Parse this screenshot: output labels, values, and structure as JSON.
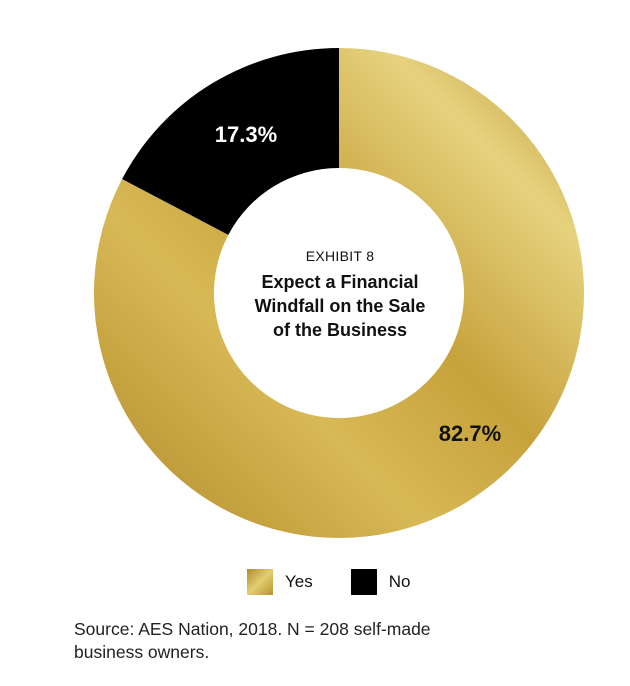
{
  "chart_data": {
    "type": "pie",
    "variant": "donut",
    "exhibit_label": "EXHIBIT 8",
    "title": "Expect a Financial Windfall on the Sale of the Business",
    "title_lines": [
      "Expect a Financial",
      "Windfall on the Sale",
      "of the Business"
    ],
    "slices": [
      {
        "label": "Yes",
        "value": 82.7,
        "display": "82.7%",
        "color": "#c9a53d"
      },
      {
        "label": "No",
        "value": 17.3,
        "display": "17.3%",
        "color": "#000000"
      }
    ],
    "legend": [
      {
        "label": "Yes",
        "color": "#c9a53d"
      },
      {
        "label": "No",
        "color": "#000000"
      }
    ]
  },
  "source": {
    "line1": "Source: AES Nation, 2018. N = 208 self-made",
    "line2": "business owners."
  }
}
